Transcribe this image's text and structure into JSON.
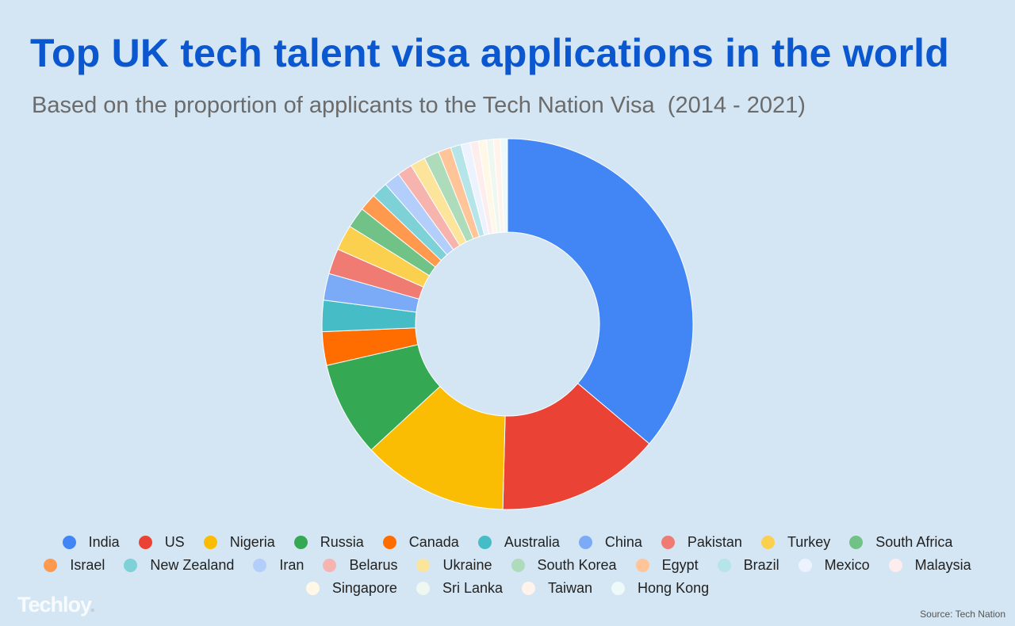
{
  "title": "Top UK tech talent visa applications in the world",
  "subtitle": "Based on the proportion of applicants to the Tech Nation Visa  (2014 - 2021)",
  "brand": "Techloy",
  "source": "Source: Tech Nation",
  "chart_data": {
    "type": "pie",
    "donut": true,
    "legend_position": "bottom",
    "categories": [
      "India",
      "US",
      "Nigeria",
      "Russia",
      "Canada",
      "Australia",
      "China",
      "Pakistan",
      "Turkey",
      "South Africa",
      "Israel",
      "New Zealand",
      "Iran",
      "Belarus",
      "Ukraine",
      "South Korea",
      "Egypt",
      "Brazil",
      "Mexico",
      "Malaysia",
      "Singapore",
      "Sri Lanka",
      "Taiwan",
      "Hong Kong"
    ],
    "values": [
      35.8,
      14.1,
      12.6,
      8.2,
      2.9,
      2.7,
      2.3,
      2.2,
      2.2,
      1.8,
      1.5,
      1.4,
      1.4,
      1.3,
      1.3,
      1.3,
      1.1,
      0.9,
      0.8,
      0.7,
      0.7,
      0.6,
      0.6,
      0.6
    ],
    "colors": [
      "#4285f4",
      "#ea4335",
      "#fbbc04",
      "#34a853",
      "#ff6d01",
      "#46bdc6",
      "#7baaf7",
      "#f07b72",
      "#fcd04f",
      "#71c287",
      "#ff994d",
      "#7ed1d7",
      "#b3cefb",
      "#f7b4ae",
      "#fde49b",
      "#aedcba",
      "#ffc599",
      "#b5e5e8",
      "#ecf3fe",
      "#fdeeed",
      "#fff8e6",
      "#eef8f0",
      "#fff3eb",
      "#eef9fa"
    ]
  }
}
